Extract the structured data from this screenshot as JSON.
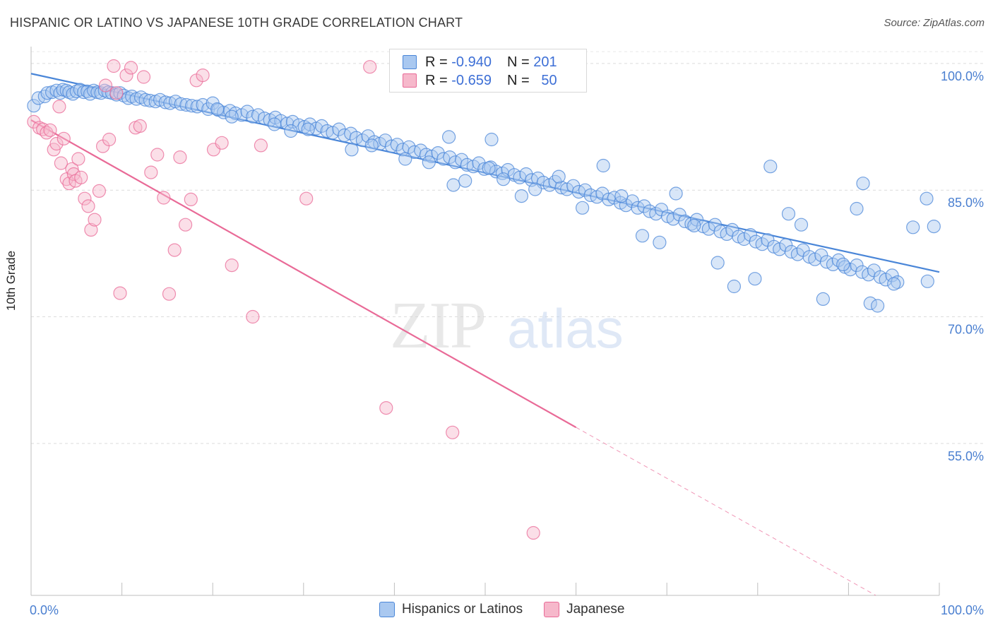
{
  "header": {
    "title": "HISPANIC OR LATINO VS JAPANESE 10TH GRADE CORRELATION CHART",
    "source": "Source: ZipAtlas.com"
  },
  "legend": {
    "rows": [
      {
        "r_label": "R =",
        "r_value": "-0.940",
        "n_label": "N =",
        "n_value": "201",
        "color": "#a9c8f0"
      },
      {
        "r_label": "R =",
        "r_value": "-0.659",
        "n_label": "N =",
        "n_value": "50",
        "color": "#f6b8cb"
      }
    ]
  },
  "bottom_legend": {
    "items": [
      {
        "label": "Hispanics or Latinos",
        "color": "#a9c8f0"
      },
      {
        "label": "Japanese",
        "color": "#f6b8cb"
      }
    ]
  },
  "watermark": {
    "zip": "ZIP",
    "atlas": "atlas"
  },
  "chart_data": {
    "type": "scatter",
    "title": "HISPANIC OR LATINO VS JAPANESE 10TH GRADE CORRELATION CHART",
    "xlabel": "",
    "ylabel": "10th Grade",
    "xlim": [
      0,
      100
    ],
    "ylim": [
      37,
      102
    ],
    "x_tick_labels": [
      "0.0%",
      "100.0%"
    ],
    "y_ticks": [
      100,
      85,
      70,
      55
    ],
    "y_tick_labels": [
      "100.0%",
      "85.0%",
      "70.0%",
      "55.0%"
    ],
    "grid": true,
    "legend_position": "top-center",
    "series": [
      {
        "name": "Hispanics or Latinos",
        "color": "#4a86d8",
        "fill": "#a9c8f0",
        "trend": {
          "x": [
            0,
            100
          ],
          "y": [
            98.8,
            75.3
          ],
          "dashed_after": null
        },
        "points": [
          [
            0.3,
            95.0
          ],
          [
            0.8,
            95.9
          ],
          [
            1.5,
            96.1
          ],
          [
            1.8,
            96.5
          ],
          [
            2.3,
            96.6
          ],
          [
            2.8,
            96.8
          ],
          [
            3.2,
            96.5
          ],
          [
            3.5,
            96.9
          ],
          [
            3.9,
            96.8
          ],
          [
            4.2,
            96.6
          ],
          [
            4.6,
            96.4
          ],
          [
            5.0,
            96.7
          ],
          [
            5.4,
            96.9
          ],
          [
            5.8,
            96.6
          ],
          [
            6.2,
            96.7
          ],
          [
            6.5,
            96.4
          ],
          [
            6.9,
            96.8
          ],
          [
            7.3,
            96.6
          ],
          [
            7.7,
            96.5
          ],
          [
            8.1,
            96.8
          ],
          [
            8.5,
            96.6
          ],
          [
            8.9,
            96.5
          ],
          [
            9.4,
            96.3
          ],
          [
            9.8,
            96.5
          ],
          [
            10.2,
            96.2
          ],
          [
            10.7,
            95.9
          ],
          [
            11.1,
            96.1
          ],
          [
            11.6,
            95.8
          ],
          [
            12.1,
            96.0
          ],
          [
            12.6,
            95.7
          ],
          [
            13.1,
            95.6
          ],
          [
            13.7,
            95.5
          ],
          [
            14.2,
            95.7
          ],
          [
            14.8,
            95.4
          ],
          [
            15.3,
            95.3
          ],
          [
            15.9,
            95.5
          ],
          [
            16.5,
            95.2
          ],
          [
            17.1,
            95.1
          ],
          [
            17.7,
            95.0
          ],
          [
            18.3,
            94.9
          ],
          [
            18.9,
            95.1
          ],
          [
            19.5,
            94.6
          ],
          [
            20.0,
            95.3
          ],
          [
            20.6,
            94.5
          ],
          [
            21.2,
            94.2
          ],
          [
            21.9,
            94.4
          ],
          [
            22.5,
            94.1
          ],
          [
            23.2,
            93.9
          ],
          [
            23.8,
            94.3
          ],
          [
            24.4,
            93.7
          ],
          [
            25.0,
            93.9
          ],
          [
            25.7,
            93.5
          ],
          [
            26.3,
            93.3
          ],
          [
            26.9,
            93.6
          ],
          [
            27.5,
            93.2
          ],
          [
            28.2,
            92.9
          ],
          [
            28.8,
            93.1
          ],
          [
            29.5,
            92.7
          ],
          [
            30.1,
            92.5
          ],
          [
            30.7,
            92.8
          ],
          [
            31.4,
            92.3
          ],
          [
            32.0,
            92.6
          ],
          [
            32.6,
            92.0
          ],
          [
            33.2,
            91.8
          ],
          [
            33.9,
            92.2
          ],
          [
            34.5,
            91.5
          ],
          [
            35.2,
            91.7
          ],
          [
            35.8,
            91.2
          ],
          [
            36.5,
            90.9
          ],
          [
            37.1,
            91.4
          ],
          [
            37.8,
            90.7
          ],
          [
            38.4,
            90.5
          ],
          [
            39.0,
            90.9
          ],
          [
            39.7,
            90.2
          ],
          [
            40.3,
            90.4
          ],
          [
            40.9,
            89.8
          ],
          [
            41.6,
            90.1
          ],
          [
            42.2,
            89.5
          ],
          [
            42.9,
            89.7
          ],
          [
            43.5,
            89.2
          ],
          [
            44.1,
            89.0
          ],
          [
            44.8,
            89.4
          ],
          [
            45.4,
            88.7
          ],
          [
            46.1,
            88.9
          ],
          [
            46.7,
            88.3
          ],
          [
            47.4,
            88.6
          ],
          [
            48.0,
            88.0
          ],
          [
            48.7,
            87.8
          ],
          [
            49.3,
            88.2
          ],
          [
            49.9,
            87.5
          ],
          [
            50.6,
            87.7
          ],
          [
            51.2,
            87.2
          ],
          [
            51.9,
            87.0
          ],
          [
            52.5,
            87.4
          ],
          [
            53.2,
            86.8
          ],
          [
            53.8,
            86.5
          ],
          [
            54.5,
            86.9
          ],
          [
            55.1,
            86.2
          ],
          [
            55.8,
            86.4
          ],
          [
            56.4,
            85.9
          ],
          [
            57.1,
            85.6
          ],
          [
            57.7,
            86.0
          ],
          [
            58.4,
            85.3
          ],
          [
            59.0,
            85.1
          ],
          [
            59.7,
            85.5
          ],
          [
            60.3,
            84.8
          ],
          [
            61.0,
            85.0
          ],
          [
            61.6,
            84.4
          ],
          [
            62.3,
            84.2
          ],
          [
            62.9,
            84.6
          ],
          [
            63.6,
            83.9
          ],
          [
            64.2,
            84.1
          ],
          [
            64.9,
            83.5
          ],
          [
            65.5,
            83.2
          ],
          [
            66.2,
            83.7
          ],
          [
            66.8,
            82.9
          ],
          [
            67.5,
            83.1
          ],
          [
            68.1,
            82.5
          ],
          [
            68.8,
            82.2
          ],
          [
            69.4,
            82.7
          ],
          [
            70.1,
            81.9
          ],
          [
            70.7,
            81.6
          ],
          [
            71.4,
            82.1
          ],
          [
            72.0,
            81.3
          ],
          [
            72.7,
            81.0
          ],
          [
            73.3,
            81.5
          ],
          [
            74.0,
            80.7
          ],
          [
            74.6,
            80.4
          ],
          [
            75.3,
            80.9
          ],
          [
            75.9,
            80.1
          ],
          [
            76.6,
            79.8
          ],
          [
            77.2,
            80.3
          ],
          [
            77.9,
            79.5
          ],
          [
            78.5,
            79.2
          ],
          [
            79.2,
            79.7
          ],
          [
            79.8,
            78.9
          ],
          [
            80.5,
            78.6
          ],
          [
            81.1,
            79.1
          ],
          [
            81.8,
            78.3
          ],
          [
            82.4,
            78.0
          ],
          [
            83.1,
            78.5
          ],
          [
            83.7,
            77.7
          ],
          [
            84.4,
            77.4
          ],
          [
            85.0,
            77.9
          ],
          [
            85.7,
            77.1
          ],
          [
            86.3,
            76.8
          ],
          [
            87.0,
            77.3
          ],
          [
            87.6,
            76.5
          ],
          [
            88.3,
            76.2
          ],
          [
            88.9,
            76.7
          ],
          [
            89.6,
            75.9
          ],
          [
            90.2,
            75.6
          ],
          [
            90.9,
            76.1
          ],
          [
            91.5,
            75.3
          ],
          [
            92.2,
            75.0
          ],
          [
            92.8,
            75.5
          ],
          [
            93.5,
            74.7
          ],
          [
            94.1,
            74.4
          ],
          [
            94.8,
            74.9
          ],
          [
            95.4,
            74.1
          ],
          [
            46.0,
            91.3
          ],
          [
            50.7,
            91.0
          ],
          [
            20.5,
            94.6
          ],
          [
            22.1,
            93.7
          ],
          [
            26.8,
            92.8
          ],
          [
            28.6,
            92.0
          ],
          [
            30.5,
            92.2
          ],
          [
            35.3,
            89.8
          ],
          [
            37.5,
            90.3
          ],
          [
            41.2,
            88.7
          ],
          [
            43.8,
            88.3
          ],
          [
            46.5,
            85.6
          ],
          [
            47.8,
            86.1
          ],
          [
            50.4,
            87.6
          ],
          [
            52.0,
            86.3
          ],
          [
            54.0,
            84.3
          ],
          [
            55.5,
            85.1
          ],
          [
            58.1,
            86.6
          ],
          [
            60.7,
            82.9
          ],
          [
            63.0,
            87.9
          ],
          [
            65.0,
            84.3
          ],
          [
            67.3,
            79.6
          ],
          [
            69.2,
            78.8
          ],
          [
            71.0,
            84.6
          ],
          [
            73.0,
            80.8
          ],
          [
            75.6,
            76.4
          ],
          [
            77.4,
            73.6
          ],
          [
            79.7,
            74.5
          ],
          [
            81.4,
            87.8
          ],
          [
            83.4,
            82.2
          ],
          [
            84.8,
            80.9
          ],
          [
            87.2,
            72.1
          ],
          [
            89.4,
            76.2
          ],
          [
            90.9,
            82.8
          ],
          [
            91.6,
            85.8
          ],
          [
            92.4,
            71.6
          ],
          [
            93.2,
            71.3
          ],
          [
            95.0,
            73.9
          ],
          [
            97.1,
            80.6
          ],
          [
            98.7,
            74.2
          ],
          [
            99.4,
            80.7
          ],
          [
            98.6,
            84.0
          ]
        ]
      },
      {
        "name": "Japanese",
        "color": "#e96a97",
        "fill": "#f6b8cb",
        "trend": {
          "x": [
            0,
            60
          ],
          "y": [
            93.3,
            56.9
          ],
          "dashed_to": {
            "x": 93,
            "y": 37
          }
        },
        "points": [
          [
            0.3,
            93.1
          ],
          [
            0.9,
            92.4
          ],
          [
            1.3,
            92.2
          ],
          [
            1.7,
            91.8
          ],
          [
            2.1,
            92.1
          ],
          [
            2.5,
            89.8
          ],
          [
            2.8,
            90.5
          ],
          [
            3.1,
            94.9
          ],
          [
            3.3,
            88.2
          ],
          [
            3.6,
            91.1
          ],
          [
            3.9,
            86.3
          ],
          [
            4.2,
            85.8
          ],
          [
            4.5,
            87.5
          ],
          [
            4.7,
            86.9
          ],
          [
            4.9,
            86.1
          ],
          [
            5.2,
            88.7
          ],
          [
            5.5,
            86.5
          ],
          [
            5.9,
            84.0
          ],
          [
            6.3,
            83.1
          ],
          [
            6.6,
            80.3
          ],
          [
            7.0,
            81.5
          ],
          [
            7.5,
            84.9
          ],
          [
            7.9,
            90.2
          ],
          [
            8.2,
            97.4
          ],
          [
            8.6,
            91.0
          ],
          [
            9.1,
            99.7
          ],
          [
            9.4,
            96.5
          ],
          [
            9.8,
            72.8
          ],
          [
            10.5,
            98.6
          ],
          [
            11.0,
            99.5
          ],
          [
            11.5,
            92.4
          ],
          [
            12.0,
            92.6
          ],
          [
            12.4,
            98.4
          ],
          [
            13.2,
            87.1
          ],
          [
            13.9,
            89.2
          ],
          [
            14.6,
            84.1
          ],
          [
            15.2,
            72.7
          ],
          [
            15.8,
            77.9
          ],
          [
            16.4,
            88.9
          ],
          [
            17.0,
            80.9
          ],
          [
            17.6,
            83.9
          ],
          [
            18.2,
            98.0
          ],
          [
            18.9,
            98.6
          ],
          [
            20.1,
            89.8
          ],
          [
            21.0,
            90.6
          ],
          [
            22.1,
            76.1
          ],
          [
            24.4,
            70.0
          ],
          [
            25.3,
            90.3
          ],
          [
            30.3,
            84.0
          ],
          [
            37.3,
            99.6
          ],
          [
            39.1,
            59.2
          ],
          [
            46.4,
            56.3
          ],
          [
            55.3,
            44.4
          ]
        ]
      }
    ]
  }
}
